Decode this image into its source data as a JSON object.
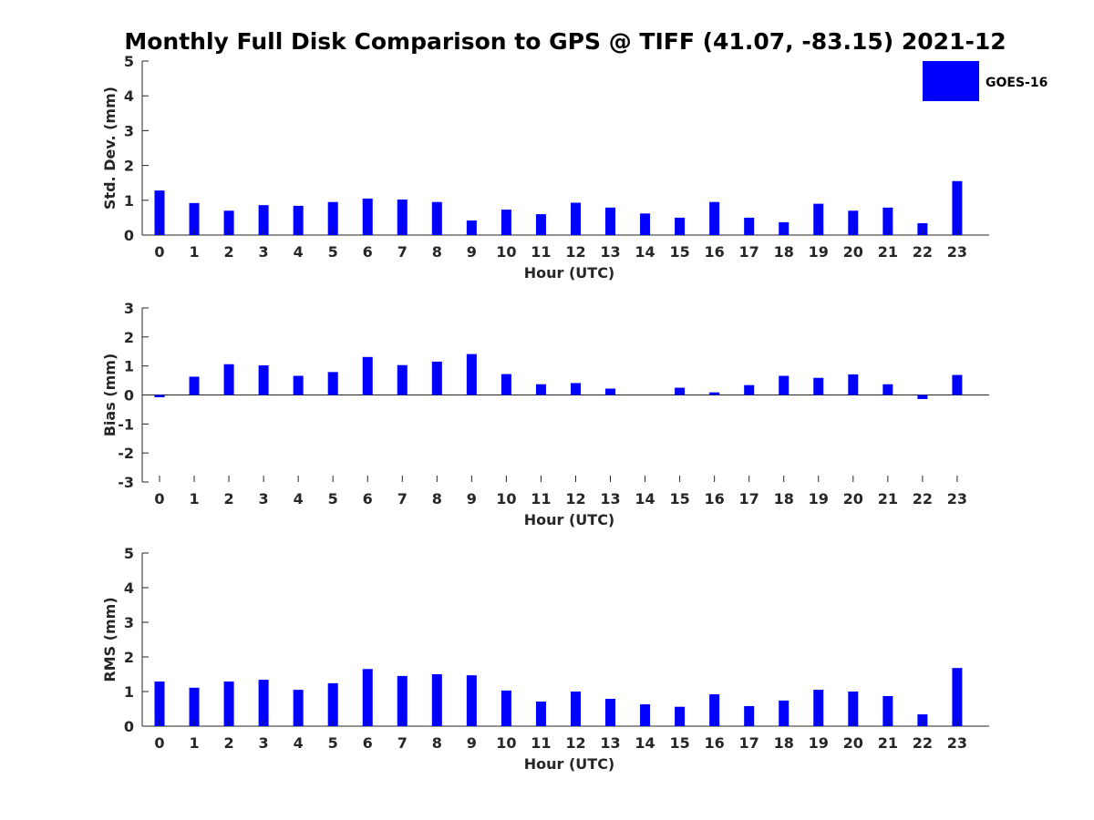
{
  "title": "Monthly Full Disk Comparison to GPS @ TIFF (41.07, -83.15) 2021-12",
  "legend": {
    "label": "GOES-16",
    "color": "#0000ff"
  },
  "bar_color": "#0000ff",
  "chart_data": [
    {
      "type": "bar",
      "name": "std",
      "categories": [
        "0",
        "1",
        "2",
        "3",
        "4",
        "5",
        "6",
        "7",
        "8",
        "9",
        "10",
        "11",
        "12",
        "13",
        "14",
        "15",
        "16",
        "17",
        "18",
        "19",
        "20",
        "21",
        "22",
        "23"
      ],
      "values": [
        1.28,
        0.92,
        0.7,
        0.86,
        0.84,
        0.95,
        1.05,
        1.02,
        0.95,
        0.42,
        0.73,
        0.6,
        0.93,
        0.79,
        0.62,
        0.5,
        0.95,
        0.5,
        0.37,
        0.9,
        0.7,
        0.79,
        0.34,
        1.55
      ],
      "xlabel": "Hour (UTC)",
      "ylabel": "Std. Dev. (mm)",
      "ylim": [
        0,
        5
      ],
      "yticks": [
        0,
        1,
        2,
        3,
        4,
        5
      ],
      "grid": false
    },
    {
      "type": "bar",
      "name": "bias",
      "categories": [
        "0",
        "1",
        "2",
        "3",
        "4",
        "5",
        "6",
        "7",
        "8",
        "9",
        "10",
        "11",
        "12",
        "13",
        "14",
        "15",
        "16",
        "17",
        "18",
        "19",
        "20",
        "21",
        "22",
        "23"
      ],
      "values": [
        -0.08,
        0.63,
        1.06,
        1.02,
        0.66,
        0.79,
        1.31,
        1.03,
        1.15,
        1.41,
        0.72,
        0.37,
        0.41,
        0.22,
        0.0,
        0.25,
        0.09,
        0.34,
        0.66,
        0.59,
        0.71,
        0.37,
        -0.14,
        0.69
      ],
      "xlabel": "Hour (UTC)",
      "ylabel": "Bias (mm)",
      "ylim": [
        -3,
        3
      ],
      "yticks": [
        -3,
        -2,
        -1,
        0,
        1,
        2,
        3
      ],
      "grid": false
    },
    {
      "type": "bar",
      "name": "rms",
      "categories": [
        "0",
        "1",
        "2",
        "3",
        "4",
        "5",
        "6",
        "7",
        "8",
        "9",
        "10",
        "11",
        "12",
        "13",
        "14",
        "15",
        "16",
        "17",
        "18",
        "19",
        "20",
        "21",
        "22",
        "23"
      ],
      "values": [
        1.29,
        1.11,
        1.29,
        1.34,
        1.05,
        1.24,
        1.65,
        1.45,
        1.5,
        1.47,
        1.03,
        0.71,
        1.0,
        0.79,
        0.63,
        0.56,
        0.92,
        0.58,
        0.74,
        1.05,
        1.0,
        0.87,
        0.34,
        1.68
      ],
      "xlabel": "Hour (UTC)",
      "ylabel": "RMS (mm)",
      "ylim": [
        0,
        5
      ],
      "yticks": [
        0,
        1,
        2,
        3,
        4,
        5
      ],
      "grid": false
    }
  ]
}
